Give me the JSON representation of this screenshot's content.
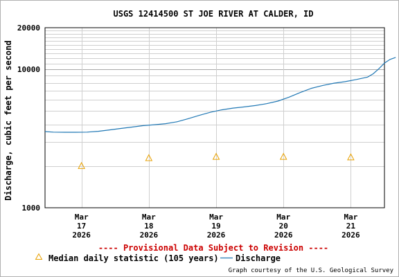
{
  "chart_data": {
    "type": "line",
    "title": "USGS 12414500 ST JOE RIVER AT CALDER, ID",
    "ylabel": "Discharge, cubic feet per second",
    "xlabel": "",
    "y_scale": "log",
    "ylim": [
      1000,
      20000
    ],
    "y_ticks": [
      "20000",
      "10000",
      "1000"
    ],
    "x_range": [
      "2026-03-16T11:00",
      "2026-03-21T12:00"
    ],
    "x_ticks": [
      {
        "date": "2026-03-17",
        "line1": "Mar",
        "line2": "17",
        "line3": "2026"
      },
      {
        "date": "2026-03-18",
        "line1": "Mar",
        "line2": "18",
        "line3": "2026"
      },
      {
        "date": "2026-03-19",
        "line1": "Mar",
        "line2": "19",
        "line3": "2026"
      },
      {
        "date": "2026-03-20",
        "line1": "Mar",
        "line2": "20",
        "line3": "2026"
      },
      {
        "date": "2026-03-21",
        "line1": "Mar",
        "line2": "21",
        "line3": "2026"
      }
    ],
    "grid": true,
    "series": [
      {
        "name": "Discharge",
        "color": "#1f77b4",
        "points": [
          {
            "x": "2026-03-16T11:00",
            "y": 3550
          },
          {
            "x": "2026-03-16T14:00",
            "y": 3520
          },
          {
            "x": "2026-03-16T18:00",
            "y": 3510
          },
          {
            "x": "2026-03-16T22:00",
            "y": 3510
          },
          {
            "x": "2026-03-17T02:00",
            "y": 3520
          },
          {
            "x": "2026-03-17T06:00",
            "y": 3570
          },
          {
            "x": "2026-03-17T10:00",
            "y": 3650
          },
          {
            "x": "2026-03-17T14:00",
            "y": 3740
          },
          {
            "x": "2026-03-17T18:00",
            "y": 3830
          },
          {
            "x": "2026-03-17T22:00",
            "y": 3920
          },
          {
            "x": "2026-03-18T02:00",
            "y": 3980
          },
          {
            "x": "2026-03-18T06:00",
            "y": 4050
          },
          {
            "x": "2026-03-18T10:00",
            "y": 4180
          },
          {
            "x": "2026-03-18T14:00",
            "y": 4400
          },
          {
            "x": "2026-03-18T18:00",
            "y": 4650
          },
          {
            "x": "2026-03-18T22:00",
            "y": 4900
          },
          {
            "x": "2026-03-19T02:00",
            "y": 5100
          },
          {
            "x": "2026-03-19T06:00",
            "y": 5250
          },
          {
            "x": "2026-03-19T10:00",
            "y": 5350
          },
          {
            "x": "2026-03-19T14:00",
            "y": 5480
          },
          {
            "x": "2026-03-19T18:00",
            "y": 5650
          },
          {
            "x": "2026-03-19T22:00",
            "y": 5900
          },
          {
            "x": "2026-03-20T02:00",
            "y": 6300
          },
          {
            "x": "2026-03-20T06:00",
            "y": 6800
          },
          {
            "x": "2026-03-20T10:00",
            "y": 7300
          },
          {
            "x": "2026-03-20T14:00",
            "y": 7650
          },
          {
            "x": "2026-03-20T18:00",
            "y": 7950
          },
          {
            "x": "2026-03-20T22:00",
            "y": 8150
          },
          {
            "x": "2026-03-21T02:00",
            "y": 8450
          },
          {
            "x": "2026-03-21T06:00",
            "y": 8800
          },
          {
            "x": "2026-03-21T08:00",
            "y": 9300
          },
          {
            "x": "2026-03-21T10:00",
            "y": 10100
          },
          {
            "x": "2026-03-21T12:00",
            "y": 11100
          },
          {
            "x": "2026-03-21T14:00",
            "y": 11800
          },
          {
            "x": "2026-03-21T16:00",
            "y": 12200
          }
        ]
      },
      {
        "name": "Median daily statistic (105 years)",
        "color": "#e8a000",
        "marker": "triangle",
        "points": [
          {
            "x": "2026-03-17T00:00",
            "y": 2000
          },
          {
            "x": "2026-03-18T00:00",
            "y": 2280
          },
          {
            "x": "2026-03-19T00:00",
            "y": 2330
          },
          {
            "x": "2026-03-20T00:00",
            "y": 2330
          },
          {
            "x": "2026-03-21T00:00",
            "y": 2310
          }
        ]
      }
    ]
  },
  "provisional_note": "---- Provisional Data Subject to Revision ----",
  "legend": {
    "median_label": "Median daily statistic (105 years)",
    "discharge_label": "Discharge"
  },
  "credit": "Graph courtesy of the U.S. Geological Survey"
}
